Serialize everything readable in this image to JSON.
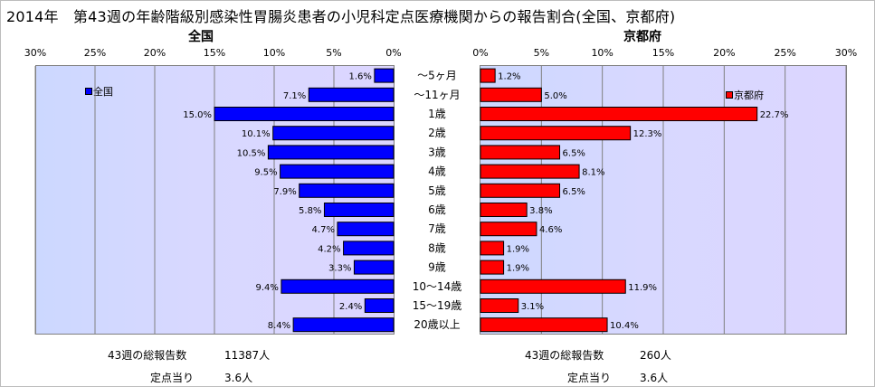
{
  "title": "2014年　第43週の年齢階級別感染性胃腸炎患者の小児科定点医療機関からの報告割合(全国、京都府)",
  "colors": {
    "national": "#0000ff",
    "kyoto": "#ff0000"
  },
  "chart_data": [
    {
      "type": "bar",
      "orientation": "horizontal",
      "direction": "right-to-left",
      "title": "全国",
      "legend": "全国",
      "legend_position": "top-left",
      "xlim": [
        0,
        30
      ],
      "xticks": [
        "0%",
        "5%",
        "10%",
        "15%",
        "20%",
        "25%",
        "30%"
      ],
      "grid": true,
      "categories": [
        "～5ヶ月",
        "～11ヶ月",
        "1歳",
        "2歳",
        "3歳",
        "4歳",
        "5歳",
        "6歳",
        "7歳",
        "8歳",
        "9歳",
        "10～14歳",
        "15～19歳",
        "20歳以上"
      ],
      "values": [
        1.6,
        7.1,
        15.0,
        10.1,
        10.5,
        9.5,
        7.9,
        5.8,
        4.7,
        4.2,
        3.3,
        9.4,
        2.4,
        8.4
      ],
      "labels": [
        "1.6%",
        "7.1%",
        "15.0%",
        "10.1%",
        "10.5%",
        "9.5%",
        "7.9%",
        "5.8%",
        "4.7%",
        "4.2%",
        "3.3%",
        "9.4%",
        "2.4%",
        "8.4%"
      ]
    },
    {
      "type": "bar",
      "orientation": "horizontal",
      "direction": "left-to-right",
      "title": "京都府",
      "legend": "京都府",
      "legend_position": "top-right",
      "xlim": [
        0,
        30
      ],
      "xticks": [
        "0%",
        "5%",
        "10%",
        "15%",
        "20%",
        "25%",
        "30%"
      ],
      "grid": true,
      "categories": [
        "～5ヶ月",
        "～11ヶ月",
        "1歳",
        "2歳",
        "3歳",
        "4歳",
        "5歳",
        "6歳",
        "7歳",
        "8歳",
        "9歳",
        "10～14歳",
        "15～19歳",
        "20歳以上"
      ],
      "values": [
        1.2,
        5.0,
        22.7,
        12.3,
        6.5,
        8.1,
        6.5,
        3.8,
        4.6,
        1.9,
        1.9,
        11.9,
        3.1,
        10.4
      ],
      "labels": [
        "1.2%",
        "5.0%",
        "22.7%",
        "12.3%",
        "6.5%",
        "8.1%",
        "6.5%",
        "3.8%",
        "4.6%",
        "1.9%",
        "1.9%",
        "11.9%",
        "3.1%",
        "10.4%"
      ]
    }
  ],
  "footer": {
    "national_total_label": "43週の総報告数",
    "national_total_value": "11387人",
    "national_per_label": "定点当り",
    "national_per_value": "3.6人",
    "kyoto_total_label": "43週の総報告数",
    "kyoto_total_value": "260人",
    "kyoto_per_label": "定点当り",
    "kyoto_per_value": "3.6人"
  }
}
